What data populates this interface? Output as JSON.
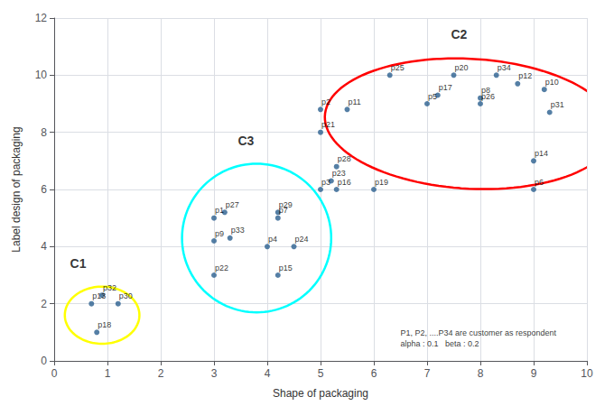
{
  "chart_data": {
    "type": "scatter",
    "xlabel": "Shape of packaging",
    "ylabel": "Label design of packaging",
    "xlim": [
      0,
      10
    ],
    "ylim": [
      0,
      12
    ],
    "xticks": [
      0,
      1,
      2,
      3,
      4,
      5,
      6,
      7,
      8,
      9,
      10
    ],
    "yticks": [
      0,
      2,
      4,
      6,
      8,
      10,
      12
    ],
    "grid": true,
    "color": "#2b5f8e",
    "points": [
      {
        "label": "p1",
        "x": 3.0,
        "y": 5.0
      },
      {
        "label": "p2",
        "x": 5.0,
        "y": 8.8
      },
      {
        "label": "p3",
        "x": 5.0,
        "y": 6.0
      },
      {
        "label": "p4",
        "x": 4.0,
        "y": 4.0
      },
      {
        "label": "p5",
        "x": 7.0,
        "y": 9.0
      },
      {
        "label": "p6",
        "x": 9.0,
        "y": 6.0
      },
      {
        "label": "p7",
        "x": 4.2,
        "y": 5.0
      },
      {
        "label": "p8",
        "x": 8.0,
        "y": 9.2
      },
      {
        "label": "p9",
        "x": 3.0,
        "y": 4.2
      },
      {
        "label": "p10",
        "x": 9.2,
        "y": 9.5
      },
      {
        "label": "p11",
        "x": 5.5,
        "y": 8.8
      },
      {
        "label": "p12",
        "x": 8.7,
        "y": 9.7
      },
      {
        "label": "p13",
        "x": 0.7,
        "y": 2.0
      },
      {
        "label": "p14",
        "x": 9.0,
        "y": 7.0
      },
      {
        "label": "p15",
        "x": 4.2,
        "y": 3.0
      },
      {
        "label": "p16",
        "x": 5.3,
        "y": 6.0
      },
      {
        "label": "p17",
        "x": 7.2,
        "y": 9.3
      },
      {
        "label": "p18",
        "x": 0.8,
        "y": 1.0
      },
      {
        "label": "p19",
        "x": 6.0,
        "y": 6.0
      },
      {
        "label": "p20",
        "x": 7.5,
        "y": 10.0
      },
      {
        "label": "p21",
        "x": 5.0,
        "y": 8.0
      },
      {
        "label": "p22",
        "x": 3.0,
        "y": 3.0
      },
      {
        "label": "p23",
        "x": 5.2,
        "y": 6.3
      },
      {
        "label": "p24",
        "x": 4.5,
        "y": 4.0
      },
      {
        "label": "p25",
        "x": 6.3,
        "y": 10.0
      },
      {
        "label": "p26",
        "x": 8.0,
        "y": 9.0
      },
      {
        "label": "p27",
        "x": 3.2,
        "y": 5.2
      },
      {
        "label": "p28",
        "x": 5.3,
        "y": 6.8
      },
      {
        "label": "p29",
        "x": 4.2,
        "y": 5.2
      },
      {
        "label": "p30",
        "x": 1.2,
        "y": 2.0
      },
      {
        "label": "p31",
        "x": 9.3,
        "y": 8.7
      },
      {
        "label": "p32",
        "x": 0.9,
        "y": 2.3
      },
      {
        "label": "p33",
        "x": 3.3,
        "y": 4.3
      },
      {
        "label": "p34",
        "x": 8.3,
        "y": 10.0
      }
    ],
    "clusters": [
      {
        "name": "C1",
        "color": "yellow",
        "label_x": 0.45,
        "label_y": 3.2,
        "cx": 0.9,
        "cy": 1.6,
        "width": 1.4,
        "height": 2.0,
        "angle": 0
      },
      {
        "name": "C2",
        "color": "red",
        "label_x": 7.6,
        "label_y": 11.2,
        "cx": 7.8,
        "cy": 8.3,
        "width": 5.5,
        "height": 4.5,
        "angle": -15
      },
      {
        "name": "C3",
        "color": "cyan",
        "label_x": 3.6,
        "label_y": 7.5,
        "cx": 3.8,
        "cy": 4.3,
        "width": 2.8,
        "height": 5.2,
        "angle": 0
      }
    ],
    "annotation": {
      "text": "P1, P2, ....P34 are customer as respondent\nalpha : 0.1   beta : 0.2",
      "x": 6.5,
      "y": 0.4
    }
  }
}
